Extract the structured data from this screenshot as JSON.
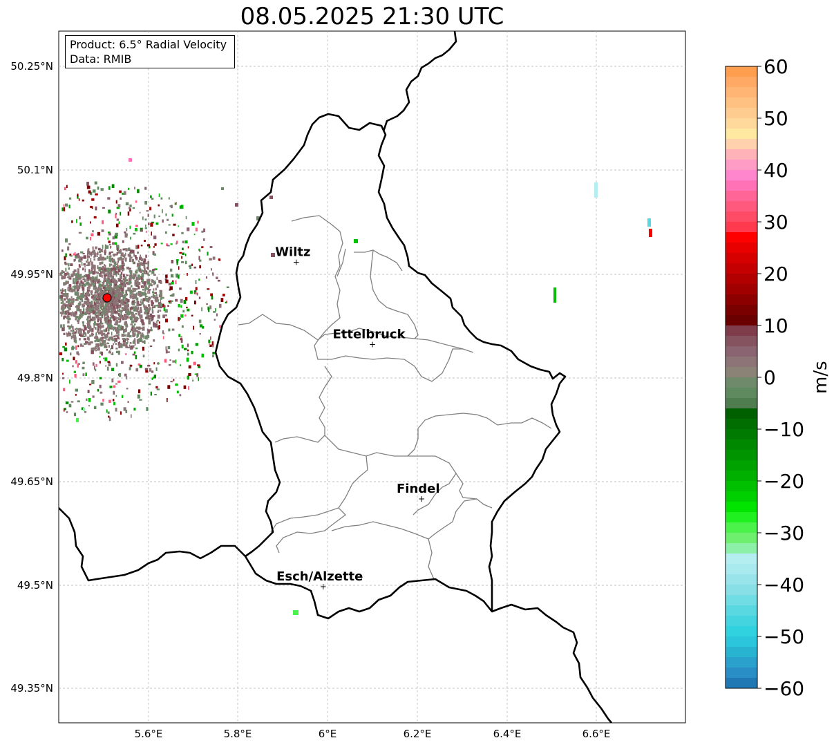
{
  "title": "08.05.2025 21:30 UTC",
  "info": {
    "product": "Product: 6.5° Radial Velocity",
    "source": "Data: RMIB"
  },
  "lat_labels": [
    "50.25°N",
    "50.1°N",
    "49.95°N",
    "49.8°N",
    "49.65°N",
    "49.5°N",
    "49.35°N"
  ],
  "lon_labels": [
    "5.6°E",
    "5.8°E",
    "6°E",
    "6.2°E",
    "6.4°E",
    "6.6°E"
  ],
  "cities": [
    {
      "name": "Wiltz",
      "lon": 5.93,
      "lat": 49.967
    },
    {
      "name": "Ettelbruck",
      "lon": 6.1,
      "lat": 49.848
    },
    {
      "name": "Findel",
      "lon": 6.21,
      "lat": 49.625
    },
    {
      "name": "Esch/Alzette",
      "lon": 5.99,
      "lat": 49.498
    }
  ],
  "radar_site": {
    "lon": 5.505,
    "lat": 49.915
  },
  "colorbar": {
    "unit": "m/s",
    "ticks": [
      "60",
      "50",
      "40",
      "30",
      "20",
      "10",
      "0",
      "−10",
      "−20",
      "−30",
      "−40",
      "−50",
      "−60"
    ],
    "min": -60,
    "max": 60
  },
  "colors": {
    "border_country": "#000000",
    "border_canton": "#808080"
  }
}
